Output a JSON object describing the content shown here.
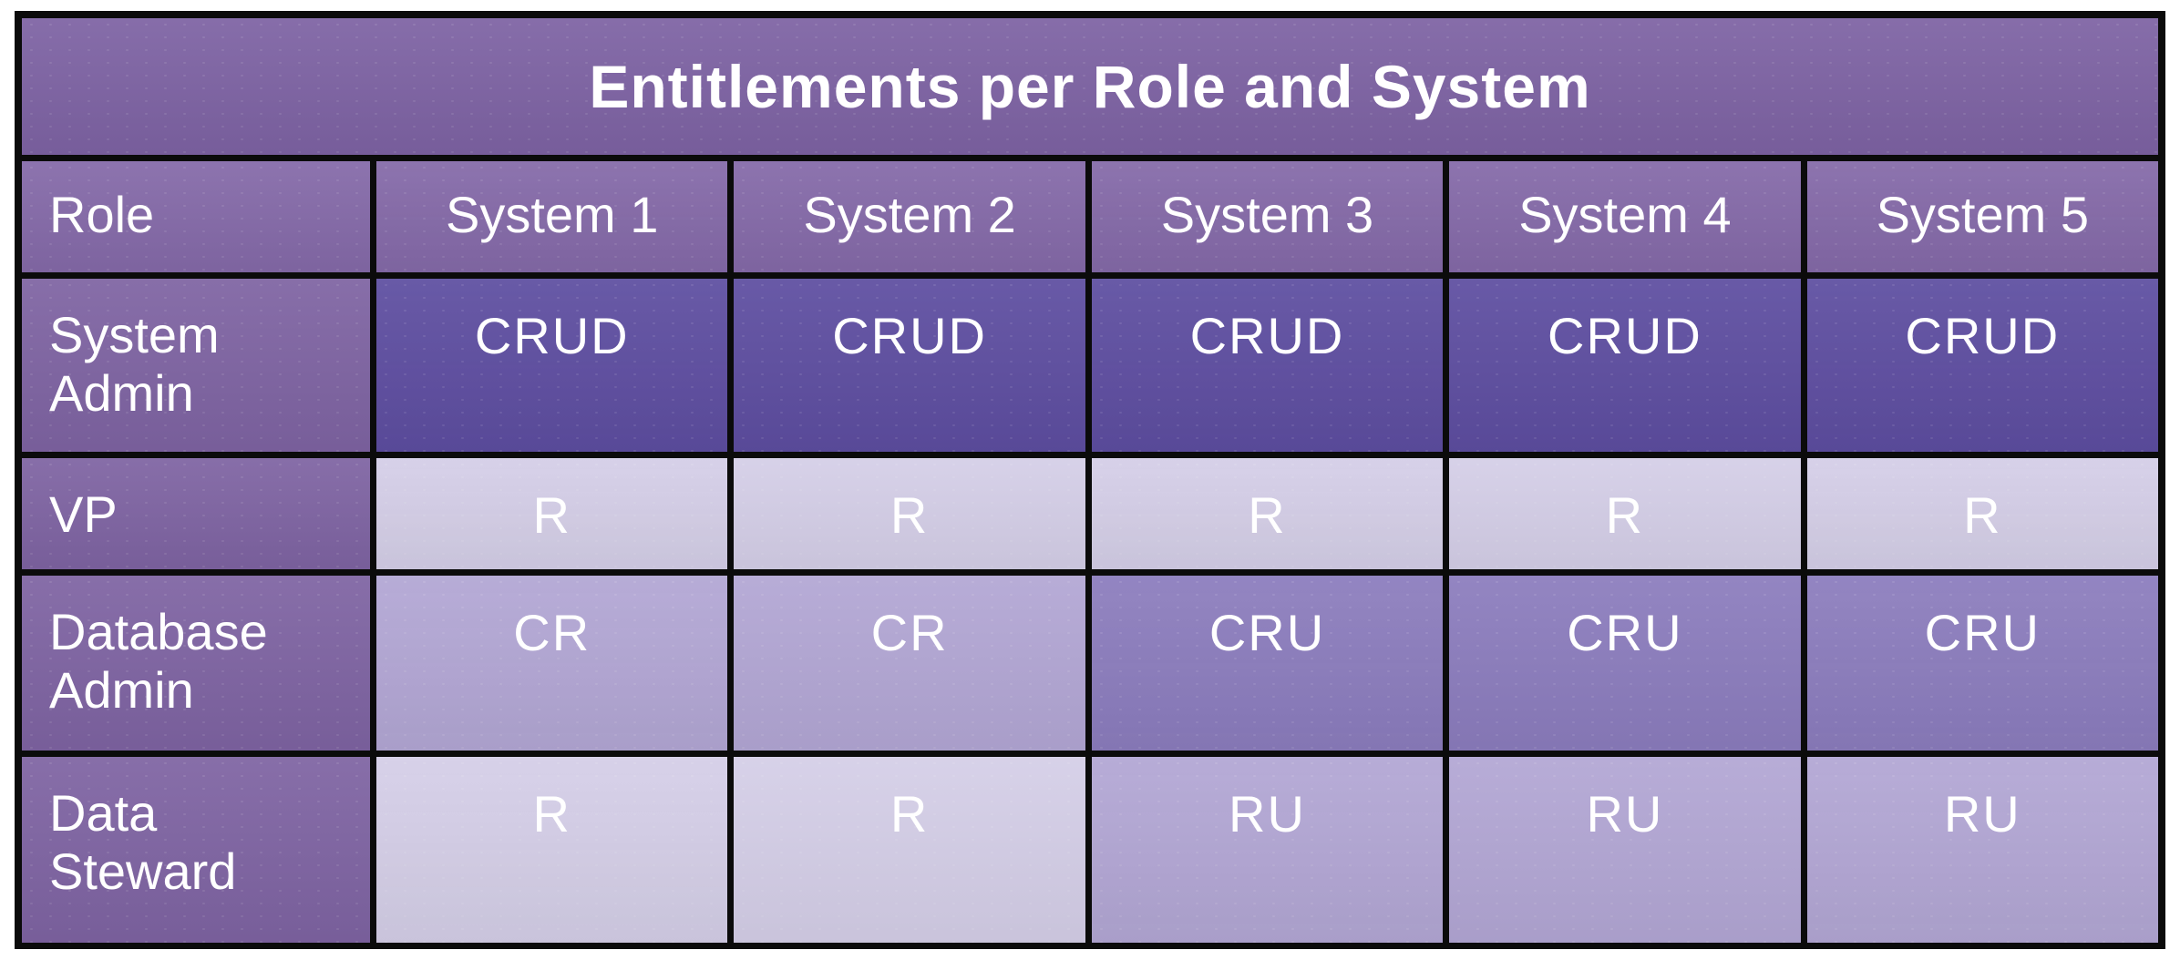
{
  "chart_data": {
    "type": "table",
    "title": "Entitlements per Role and System",
    "columns": [
      "Role",
      "System 1",
      "System 2",
      "System 3",
      "System 4",
      "System 5"
    ],
    "rows": [
      {
        "role": "System Admin",
        "values": [
          "CRUD",
          "CRUD",
          "CRUD",
          "CRUD",
          "CRUD"
        ],
        "colors": [
          "#5d4da0",
          "#5d4da0",
          "#5d4da0",
          "#5d4da0",
          "#5d4da0"
        ]
      },
      {
        "role": "VP",
        "values": [
          "R",
          "R",
          "R",
          "R",
          "R"
        ],
        "colors": [
          "#d4cee7",
          "#d4cee7",
          "#d4cee7",
          "#d4cee7",
          "#d4cee7"
        ]
      },
      {
        "role": "Database Admin",
        "values": [
          "CR",
          "CR",
          "CRU",
          "CRU",
          "CRU"
        ],
        "colors": [
          "#b2a6d4",
          "#b2a6d4",
          "#8b7cbd",
          "#8b7cbd",
          "#8b7cbd"
        ]
      },
      {
        "role": "Data Steward",
        "values": [
          "R",
          "R",
          "RU",
          "RU",
          "RU"
        ],
        "colors": [
          "#d4cee7",
          "#d4cee7",
          "#b2a6d4",
          "#b2a6d4",
          "#b2a6d4"
        ]
      }
    ],
    "value_color_legend": {
      "CRUD": "#5d4da0",
      "CRU": "#8b7cbd",
      "CR": "#b2a6d4",
      "RU": "#b2a6d4",
      "R": "#d4cee7"
    },
    "layout_hints": {
      "grid": "on",
      "grid_color": "#0b0b0b",
      "text_color": "#ffffff"
    }
  },
  "palette": {
    "page_bg": "#ffffff",
    "grid_line": "#0b0b0b",
    "title_bg": "#7d62a3",
    "header_bg": "#8469a8",
    "role_label_bg": "#7e63a2",
    "text": "#ffffff"
  }
}
